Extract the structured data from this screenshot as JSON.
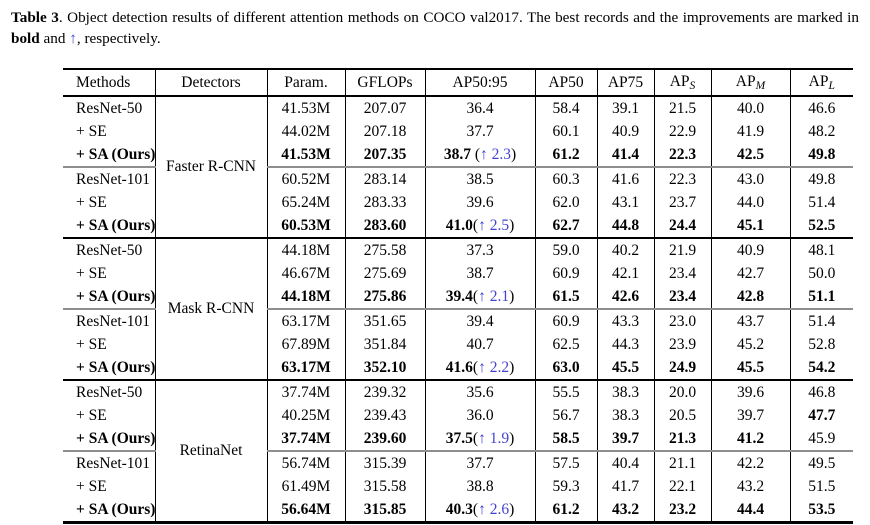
{
  "colors": {
    "improvement_blue": "#4343d1",
    "cline_gray": "#8e8e8e",
    "rule_black": "#000000"
  },
  "caption": {
    "label": "Table 3",
    "body1": ". Object detection results of different attention methods on COCO val2017. The best records and the improvements are marked in ",
    "bold_word": "bold",
    "body2": " and ",
    "arrow": "↑",
    "body3": ", respectively."
  },
  "table": {
    "headers": [
      {
        "text": "Methods"
      },
      {
        "text": "Detectors"
      },
      {
        "text": "Param."
      },
      {
        "text": "GFLOPs"
      },
      {
        "text": "AP50:95"
      },
      {
        "text": "AP50"
      },
      {
        "text": "AP75"
      },
      {
        "text": "AP",
        "sub": "S"
      },
      {
        "text": "AP",
        "sub": "M"
      },
      {
        "text": "AP",
        "sub": "L"
      }
    ],
    "sections": [
      {
        "detector": "Faster R-CNN",
        "blocks": [
          {
            "rows": [
              {
                "method": "ResNet-50",
                "best": false,
                "cells": [
                  "41.53M",
                  "207.07",
                  "36.4",
                  "58.4",
                  "39.1",
                  "21.5",
                  "40.0",
                  "46.6"
                ]
              },
              {
                "method": "+ SE",
                "best": false,
                "cells": [
                  "44.02M",
                  "207.18",
                  "37.7",
                  "60.1",
                  "40.9",
                  "22.9",
                  "41.9",
                  "48.2"
                ]
              },
              {
                "method": "+ SA (Ours)",
                "best": true,
                "cells": [
                  "41.53M",
                  "207.35",
                  "38.7",
                  "61.2",
                  "41.4",
                  "22.3",
                  "42.5",
                  "49.8"
                ],
                "imp": "↑ 2.3",
                "imp_sep": " "
              }
            ]
          },
          {
            "rows": [
              {
                "method": "ResNet-101",
                "best": false,
                "cells": [
                  "60.52M",
                  "283.14",
                  "38.5",
                  "60.3",
                  "41.6",
                  "22.3",
                  "43.0",
                  "49.8"
                ]
              },
              {
                "method": "+ SE",
                "best": false,
                "cells": [
                  "65.24M",
                  "283.33",
                  "39.6",
                  "62.0",
                  "43.1",
                  "23.7",
                  "44.0",
                  "51.4"
                ]
              },
              {
                "method": "+ SA (Ours)",
                "best": true,
                "cells": [
                  "60.53M",
                  "283.60",
                  "41.0",
                  "62.7",
                  "44.8",
                  "24.4",
                  "45.1",
                  "52.5"
                ],
                "imp": "↑ 2.5",
                "imp_sep": ""
              }
            ]
          }
        ]
      },
      {
        "detector": "Mask R-CNN",
        "blocks": [
          {
            "rows": [
              {
                "method": "ResNet-50",
                "best": false,
                "cells": [
                  "44.18M",
                  "275.58",
                  "37.3",
                  "59.0",
                  "40.2",
                  "21.9",
                  "40.9",
                  "48.1"
                ]
              },
              {
                "method": "+ SE",
                "best": false,
                "cells": [
                  "46.67M",
                  "275.69",
                  "38.7",
                  "60.9",
                  "42.1",
                  "23.4",
                  "42.7",
                  "50.0"
                ]
              },
              {
                "method": "+ SA (Ours)",
                "best": true,
                "cells": [
                  "44.18M",
                  "275.86",
                  "39.4",
                  "61.5",
                  "42.6",
                  "23.4",
                  "42.8",
                  "51.1"
                ],
                "imp": "↑ 2.1",
                "imp_sep": ""
              }
            ]
          },
          {
            "rows": [
              {
                "method": "ResNet-101",
                "best": false,
                "cells": [
                  "63.17M",
                  "351.65",
                  "39.4",
                  "60.9",
                  "43.3",
                  "23.0",
                  "43.7",
                  "51.4"
                ]
              },
              {
                "method": "+ SE",
                "best": false,
                "cells": [
                  "67.89M",
                  "351.84",
                  "40.7",
                  "62.5",
                  "44.3",
                  "23.9",
                  "45.2",
                  "52.8"
                ]
              },
              {
                "method": "+ SA (Ours)",
                "best": true,
                "cells": [
                  "63.17M",
                  "352.10",
                  "41.6",
                  "63.0",
                  "45.5",
                  "24.9",
                  "45.5",
                  "54.2"
                ],
                "imp": "↑ 2.2",
                "imp_sep": ""
              }
            ]
          }
        ]
      },
      {
        "detector": "RetinaNet",
        "blocks": [
          {
            "rows": [
              {
                "method": "ResNet-50",
                "best": false,
                "cells": [
                  "37.74M",
                  "239.32",
                  "35.6",
                  "55.5",
                  "38.3",
                  "20.0",
                  "39.6",
                  "46.8"
                ]
              },
              {
                "method": "+ SE",
                "best": false,
                "cells": [
                  "40.25M",
                  "239.43",
                  "36.0",
                  "56.7",
                  "38.3",
                  "20.5",
                  "39.7",
                  "47.7"
                ],
                "extra_bold": [
                  7
                ]
              },
              {
                "method": "+ SA (Ours)",
                "best": true,
                "cells": [
                  "37.74M",
                  "239.60",
                  "37.5",
                  "58.5",
                  "39.7",
                  "21.3",
                  "41.2",
                  "45.9"
                ],
                "imp": "↑ 1.9",
                "imp_sep": "",
                "unbold": [
                  7
                ]
              }
            ]
          },
          {
            "rows": [
              {
                "method": "ResNet-101",
                "best": false,
                "cells": [
                  "56.74M",
                  "315.39",
                  "37.7",
                  "57.5",
                  "40.4",
                  "21.1",
                  "42.2",
                  "49.5"
                ]
              },
              {
                "method": "+ SE",
                "best": false,
                "cells": [
                  "61.49M",
                  "315.58",
                  "38.8",
                  "59.3",
                  "41.7",
                  "22.1",
                  "43.2",
                  "51.5"
                ]
              },
              {
                "method": "+ SA (Ours)",
                "best": true,
                "cells": [
                  "56.64M",
                  "315.85",
                  "40.3",
                  "61.2",
                  "43.2",
                  "23.2",
                  "44.4",
                  "53.5"
                ],
                "imp": "↑ 2.6",
                "imp_sep": ""
              }
            ]
          }
        ]
      }
    ]
  }
}
